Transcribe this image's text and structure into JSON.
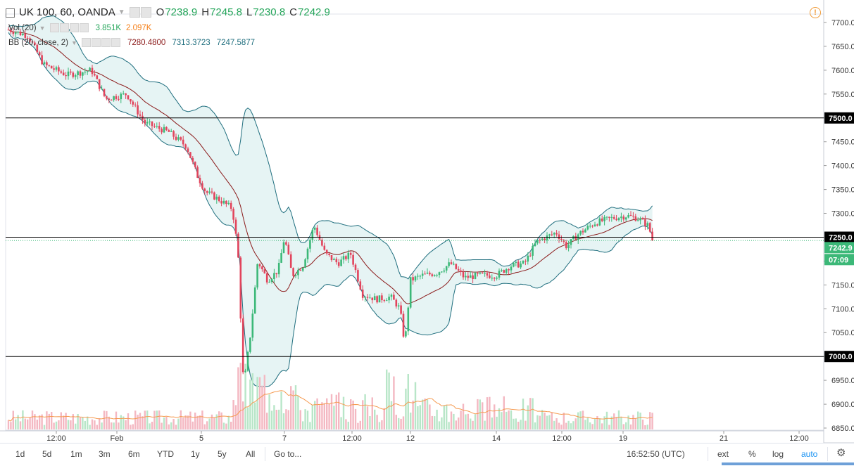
{
  "header": {
    "symbol": "UK 100, 60, OANDA",
    "o_label": "O",
    "o_value": "7238.9",
    "h_label": "H",
    "h_value": "7245.8",
    "l_label": "L",
    "l_value": "7230.8",
    "c_label": "C",
    "c_value": "7242.9"
  },
  "indicators": {
    "vol": {
      "name": "Vol (20)",
      "v1": "3.851K",
      "v2": "2.097K",
      "c1": "#26a65b",
      "c2": "#f57f17"
    },
    "bb": {
      "name": "BB (20, close, 2)",
      "basis": "7280.4800",
      "upper": "7313.3723",
      "lower": "7247.5877",
      "c_basis": "#8b1a1a",
      "c_upper": "#1f6e7e",
      "c_lower": "#1f6e7e"
    }
  },
  "price_axis": {
    "ticks": [
      "7700.0",
      "7650.0",
      "7600.0",
      "7550.0",
      "7500.0",
      "7450.0",
      "7400.0",
      "7350.0",
      "7300.0",
      "7250.0",
      "7200.0",
      "7150.0",
      "7100.0",
      "7050.0",
      "7000.0",
      "6950.0",
      "6900.0",
      "6850.0"
    ],
    "labels": {
      "level_7500": "7500.0",
      "level_7250": "7250.0",
      "level_7000": "7000.0",
      "last": "7242.9",
      "countdown": "07:09"
    }
  },
  "time_axis": {
    "ticks": [
      "12:00",
      "Feb",
      "5",
      "7",
      "12:00",
      "12",
      "14",
      "12:00",
      "19",
      "21",
      "12:00"
    ]
  },
  "bottombar": {
    "ranges": [
      "1d",
      "5d",
      "1m",
      "3m",
      "6m",
      "YTD",
      "1y",
      "5y",
      "All"
    ],
    "goto": "Go to...",
    "clock": "16:52:50 (UTC)",
    "ext": "ext",
    "pct": "%",
    "log": "log",
    "auto": "auto"
  },
  "colors": {
    "up": "#3cb878",
    "down": "#e2445c",
    "vol_up": "#b8e6c8",
    "vol_down": "#f4b8c2",
    "bb_fill": "#e6f4f4",
    "bb_line": "#1f6e7e",
    "basis": "#8b1a1a",
    "vol_ma": "#f59a50",
    "level_line": "#000000"
  },
  "chart_data": {
    "type": "candlestick",
    "title": "UK 100, 60, OANDA",
    "ylim": [
      6838,
      7722
    ],
    "horizontal_levels": [
      7500,
      7250,
      7000
    ],
    "last_price": 7242.9,
    "ohlc_anchors": {
      "note_points": [
        {
          "x": "start",
          "close": 7685
        },
        {
          "x": "12:00",
          "close": 7600
        },
        {
          "x": "Feb",
          "close": 7545
        },
        {
          "x": "Feb+1",
          "close": 7490
        },
        {
          "x": "5",
          "close": 7350
        },
        {
          "x": "5+",
          "close": 7300
        },
        {
          "x": "6",
          "close": 7180
        },
        {
          "x": "6 low",
          "close": 6935
        },
        {
          "x": "7",
          "close": 7240
        },
        {
          "x": "7+",
          "close": 7200
        },
        {
          "x": "8",
          "close": 7275
        },
        {
          "x": "12:00",
          "close": 7200
        },
        {
          "x": "9",
          "close": 7120
        },
        {
          "x": "12",
          "close": 7030
        },
        {
          "x": "12+",
          "close": 7160
        },
        {
          "x": "13",
          "close": 7190
        },
        {
          "x": "14",
          "close": 7165
        },
        {
          "x": "15",
          "close": 7195
        },
        {
          "x": "12:00",
          "close": 7250
        },
        {
          "x": "16",
          "close": 7268
        },
        {
          "x": "19",
          "close": 7298
        },
        {
          "x": "last",
          "close": 7242.9
        }
      ]
    },
    "volume_values": [
      3.851,
      2.097
    ]
  }
}
